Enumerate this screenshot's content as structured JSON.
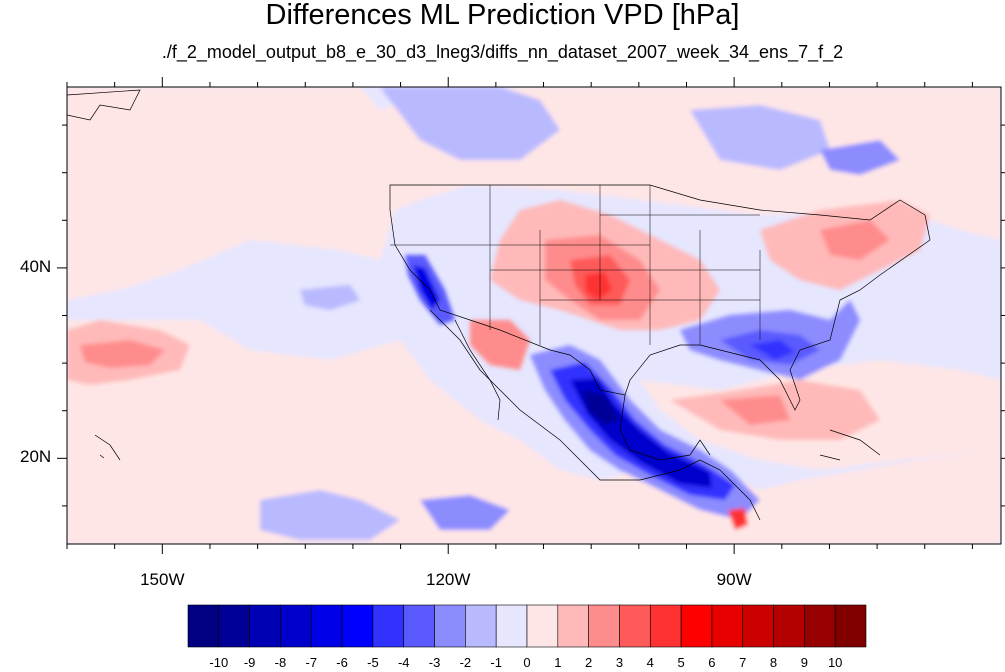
{
  "header": {
    "title": "Differences ML Prediction VPD [hPa]",
    "subtitle": "./f_2_model_output_b8_e_30_d3_lneg3/diffs_nn_dataset_2007_week_34_ens_7_f_2"
  },
  "map": {
    "lon_range": [
      -160,
      -62
    ],
    "lat_range": [
      11,
      59
    ],
    "lon_ticks": [
      {
        "value": -150,
        "label": "150W"
      },
      {
        "value": -120,
        "label": "120W"
      },
      {
        "value": -90,
        "label": "90W"
      }
    ],
    "lat_ticks": [
      {
        "value": 40,
        "label": "40N"
      },
      {
        "value": 20,
        "label": "20N"
      }
    ],
    "field_description_regions": {
      "positive": [
        "central plains (Kansas/Oklahoma)",
        "southwest Arizona",
        "northeast US",
        "central North Pacific near 150W 30N",
        "Gulf of Mexico / Atlantic"
      ],
      "negative": [
        "central and southern Mexico",
        "southeast US",
        "California Central Valley",
        "Pacific off Mexico"
      ]
    }
  },
  "colorbar": {
    "labels": [
      "-10",
      "-9",
      "-8",
      "-7",
      "-6",
      "-5",
      "-4",
      "-3",
      "-2",
      "-1",
      "0",
      "1",
      "2",
      "3",
      "4",
      "5",
      "6",
      "7",
      "8",
      "9",
      "10"
    ],
    "colors": [
      "#000080",
      "#000096",
      "#0000b4",
      "#0000cd",
      "#0000e6",
      "#0000ff",
      "#3232ff",
      "#5a5aff",
      "#8c8cff",
      "#b9b9ff",
      "#e6e6ff",
      "#ffe6e6",
      "#ffb9b9",
      "#ff8c8c",
      "#ff5a5a",
      "#ff3232",
      "#ff0000",
      "#e60000",
      "#cd0000",
      "#b40000",
      "#960000",
      "#800000"
    ]
  }
}
